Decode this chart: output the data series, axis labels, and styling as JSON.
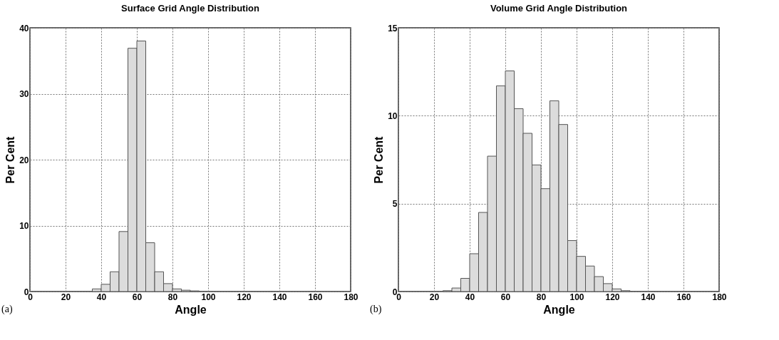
{
  "chart_data": [
    {
      "type": "histogram",
      "title": "Surface Grid Angle Distribution",
      "xlabel": "Angle",
      "ylabel": "Per Cent",
      "annotations": [
        "(a)"
      ],
      "color": "#dcdcdc",
      "bins": [
        35,
        40,
        45,
        50,
        55,
        60,
        65,
        70,
        75,
        80,
        85,
        90,
        95
      ],
      "values": [
        0.4,
        1.1,
        3.0,
        9.1,
        36.9,
        38.0,
        7.4,
        3.0,
        1.2,
        0.4,
        0.2,
        0.1
      ],
      "xlim": [
        0,
        180
      ],
      "xticks": [
        0,
        20,
        40,
        60,
        80,
        100,
        120,
        140,
        160,
        180
      ],
      "ylim": [
        0,
        40
      ],
      "yticks": [
        0,
        10,
        20,
        30,
        40
      ],
      "grid": true
    },
    {
      "type": "histogram",
      "title": "Volume Grid Angle Distribution",
      "xlabel": "Angle",
      "ylabel": "Per Cent",
      "annotations": [
        "(b)"
      ],
      "color": "#dcdcdc",
      "bins": [
        25,
        30,
        35,
        40,
        45,
        50,
        55,
        60,
        65,
        70,
        75,
        80,
        85,
        90,
        95,
        100,
        105,
        110,
        115,
        120,
        125,
        130
      ],
      "values": [
        0.05,
        0.2,
        0.75,
        2.15,
        4.5,
        7.7,
        11.7,
        12.55,
        10.4,
        9.0,
        7.2,
        5.85,
        10.85,
        9.5,
        2.9,
        2.0,
        1.45,
        0.85,
        0.45,
        0.15,
        0.05
      ],
      "xlim": [
        0,
        180
      ],
      "xticks": [
        0,
        20,
        40,
        60,
        80,
        100,
        120,
        140,
        160,
        180
      ],
      "ylim": [
        0,
        15
      ],
      "yticks": [
        0,
        5,
        10,
        15
      ],
      "grid": true
    }
  ]
}
